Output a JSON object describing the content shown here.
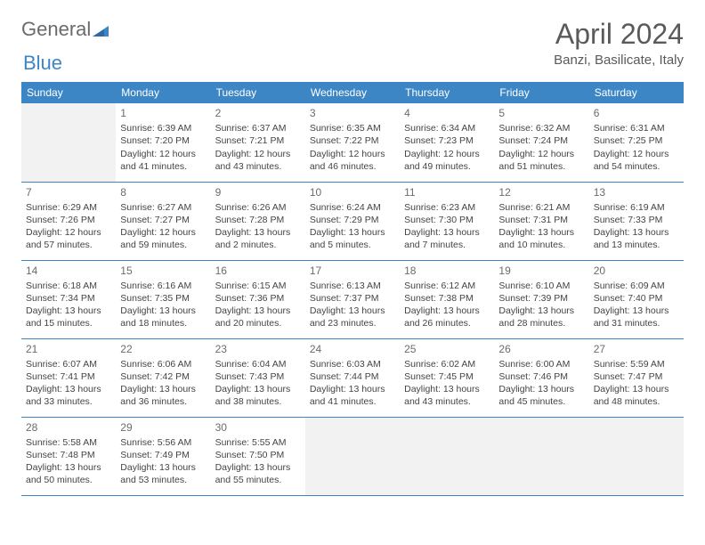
{
  "logo": {
    "part1": "General",
    "part2": "Blue"
  },
  "title": "April 2024",
  "location": "Banzi, Basilicate, Italy",
  "colors": {
    "header_bg": "#3d86c6",
    "header_text": "#ffffff",
    "border": "#3d86c6",
    "title_text": "#5a5a5a",
    "body_text": "#444444",
    "empty_bg": "#f2f2f2",
    "logo_gray": "#6b6b6b",
    "logo_blue": "#3d86c6"
  },
  "weekdays": [
    "Sunday",
    "Monday",
    "Tuesday",
    "Wednesday",
    "Thursday",
    "Friday",
    "Saturday"
  ],
  "weeks": [
    [
      null,
      {
        "d": "1",
        "sr": "6:39 AM",
        "ss": "7:20 PM",
        "dl": "12 hours and 41 minutes."
      },
      {
        "d": "2",
        "sr": "6:37 AM",
        "ss": "7:21 PM",
        "dl": "12 hours and 43 minutes."
      },
      {
        "d": "3",
        "sr": "6:35 AM",
        "ss": "7:22 PM",
        "dl": "12 hours and 46 minutes."
      },
      {
        "d": "4",
        "sr": "6:34 AM",
        "ss": "7:23 PM",
        "dl": "12 hours and 49 minutes."
      },
      {
        "d": "5",
        "sr": "6:32 AM",
        "ss": "7:24 PM",
        "dl": "12 hours and 51 minutes."
      },
      {
        "d": "6",
        "sr": "6:31 AM",
        "ss": "7:25 PM",
        "dl": "12 hours and 54 minutes."
      }
    ],
    [
      {
        "d": "7",
        "sr": "6:29 AM",
        "ss": "7:26 PM",
        "dl": "12 hours and 57 minutes."
      },
      {
        "d": "8",
        "sr": "6:27 AM",
        "ss": "7:27 PM",
        "dl": "12 hours and 59 minutes."
      },
      {
        "d": "9",
        "sr": "6:26 AM",
        "ss": "7:28 PM",
        "dl": "13 hours and 2 minutes."
      },
      {
        "d": "10",
        "sr": "6:24 AM",
        "ss": "7:29 PM",
        "dl": "13 hours and 5 minutes."
      },
      {
        "d": "11",
        "sr": "6:23 AM",
        "ss": "7:30 PM",
        "dl": "13 hours and 7 minutes."
      },
      {
        "d": "12",
        "sr": "6:21 AM",
        "ss": "7:31 PM",
        "dl": "13 hours and 10 minutes."
      },
      {
        "d": "13",
        "sr": "6:19 AM",
        "ss": "7:33 PM",
        "dl": "13 hours and 13 minutes."
      }
    ],
    [
      {
        "d": "14",
        "sr": "6:18 AM",
        "ss": "7:34 PM",
        "dl": "13 hours and 15 minutes."
      },
      {
        "d": "15",
        "sr": "6:16 AM",
        "ss": "7:35 PM",
        "dl": "13 hours and 18 minutes."
      },
      {
        "d": "16",
        "sr": "6:15 AM",
        "ss": "7:36 PM",
        "dl": "13 hours and 20 minutes."
      },
      {
        "d": "17",
        "sr": "6:13 AM",
        "ss": "7:37 PM",
        "dl": "13 hours and 23 minutes."
      },
      {
        "d": "18",
        "sr": "6:12 AM",
        "ss": "7:38 PM",
        "dl": "13 hours and 26 minutes."
      },
      {
        "d": "19",
        "sr": "6:10 AM",
        "ss": "7:39 PM",
        "dl": "13 hours and 28 minutes."
      },
      {
        "d": "20",
        "sr": "6:09 AM",
        "ss": "7:40 PM",
        "dl": "13 hours and 31 minutes."
      }
    ],
    [
      {
        "d": "21",
        "sr": "6:07 AM",
        "ss": "7:41 PM",
        "dl": "13 hours and 33 minutes."
      },
      {
        "d": "22",
        "sr": "6:06 AM",
        "ss": "7:42 PM",
        "dl": "13 hours and 36 minutes."
      },
      {
        "d": "23",
        "sr": "6:04 AM",
        "ss": "7:43 PM",
        "dl": "13 hours and 38 minutes."
      },
      {
        "d": "24",
        "sr": "6:03 AM",
        "ss": "7:44 PM",
        "dl": "13 hours and 41 minutes."
      },
      {
        "d": "25",
        "sr": "6:02 AM",
        "ss": "7:45 PM",
        "dl": "13 hours and 43 minutes."
      },
      {
        "d": "26",
        "sr": "6:00 AM",
        "ss": "7:46 PM",
        "dl": "13 hours and 45 minutes."
      },
      {
        "d": "27",
        "sr": "5:59 AM",
        "ss": "7:47 PM",
        "dl": "13 hours and 48 minutes."
      }
    ],
    [
      {
        "d": "28",
        "sr": "5:58 AM",
        "ss": "7:48 PM",
        "dl": "13 hours and 50 minutes."
      },
      {
        "d": "29",
        "sr": "5:56 AM",
        "ss": "7:49 PM",
        "dl": "13 hours and 53 minutes."
      },
      {
        "d": "30",
        "sr": "5:55 AM",
        "ss": "7:50 PM",
        "dl": "13 hours and 55 minutes."
      },
      null,
      null,
      null,
      null
    ]
  ]
}
